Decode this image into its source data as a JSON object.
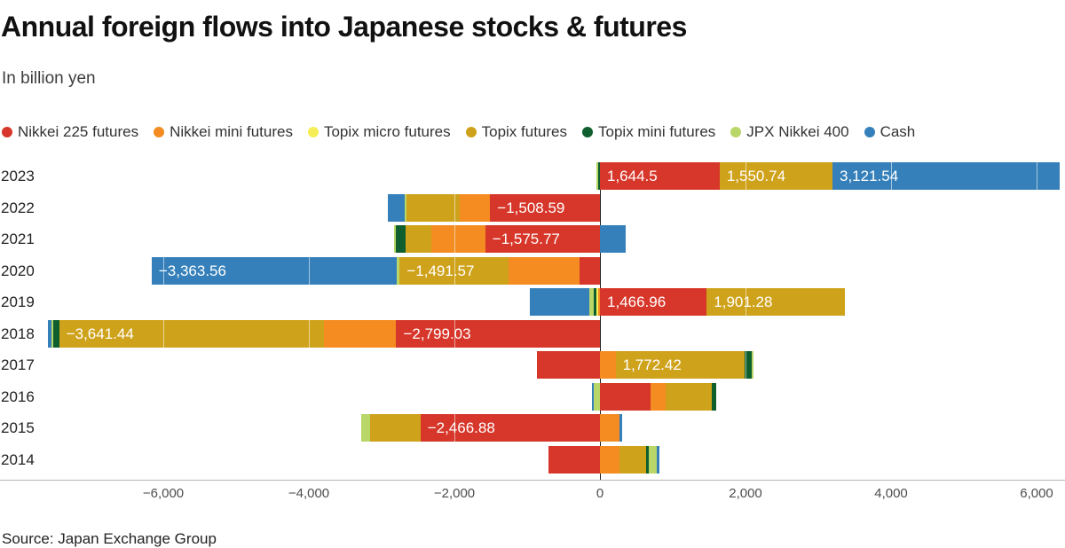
{
  "title": "Annual foreign flows into Japanese stocks & futures",
  "subtitle": "In billion yen",
  "source": "Source: Japan Exchange Group",
  "colors": {
    "nikkei225": "#d7372a",
    "mini": "#f48c21",
    "micro": "#f5ee57",
    "topix": "#cfa21b",
    "topix_mini": "#0e5f2d",
    "jpx": "#b9d668",
    "cash": "#3580ba"
  },
  "legend": [
    {
      "key": "nikkei225",
      "label": "Nikkei 225 futures"
    },
    {
      "key": "mini",
      "label": "Nikkei mini futures"
    },
    {
      "key": "micro",
      "label": "Topix micro futures"
    },
    {
      "key": "topix",
      "label": "Topix futures"
    },
    {
      "key": "topix_mini",
      "label": "Topix mini futures"
    },
    {
      "key": "jpx",
      "label": "JPX Nikkei 400"
    },
    {
      "key": "cash",
      "label": "Cash"
    }
  ],
  "chart_data": {
    "type": "bar",
    "orientation": "horizontal",
    "stacked": true,
    "unit": "billion yen",
    "xlim": [
      -7820,
      6390
    ],
    "x_ticks": [
      -6000,
      -4000,
      -2000,
      0,
      2000,
      4000,
      6000
    ],
    "x_tick_labels": [
      "−6,000",
      "−4,000",
      "−2,000",
      "0",
      "2,000",
      "4,000",
      "6,000"
    ],
    "series_names": {
      "nikkei225": "Nikkei 225 futures",
      "mini": "Nikkei mini futures",
      "micro": "Topix micro futures",
      "topix": "Topix futures",
      "topix_mini": "Topix mini futures",
      "jpx": "JPX Nikkei 400",
      "cash": "Cash"
    },
    "years": [
      {
        "label": "2023",
        "neg": [
          {
            "s": "topix_mini",
            "v": -25
          },
          {
            "s": "jpx",
            "v": -25
          }
        ],
        "pos": [
          {
            "s": "nikkei225",
            "v": 1644.5,
            "label": "1,644.5"
          },
          {
            "s": "topix",
            "v": 1550.74,
            "label": "1,550.74"
          },
          {
            "s": "cash",
            "v": 3121.54,
            "label": "3,121.54"
          }
        ]
      },
      {
        "label": "2022",
        "neg": [
          {
            "s": "nikkei225",
            "v": -1508.59,
            "label": "−1,508.59"
          },
          {
            "s": "mini",
            "v": -415
          },
          {
            "s": "topix",
            "v": -730
          },
          {
            "s": "jpx",
            "v": -25
          },
          {
            "s": "cash",
            "v": -235
          }
        ],
        "pos": []
      },
      {
        "label": "2021",
        "neg": [
          {
            "s": "nikkei225",
            "v": -1575.77,
            "label": "−1,575.77"
          },
          {
            "s": "mini",
            "v": -745
          },
          {
            "s": "topix",
            "v": -350
          },
          {
            "s": "topix_mini",
            "v": -135
          },
          {
            "s": "jpx",
            "v": -25
          }
        ],
        "pos": [
          {
            "s": "cash",
            "v": 350
          }
        ]
      },
      {
        "label": "2020",
        "neg": [
          {
            "s": "nikkei225",
            "v": -285
          },
          {
            "s": "mini",
            "v": -975
          },
          {
            "s": "topix",
            "v": -1491.57,
            "label": "−1,491.57"
          },
          {
            "s": "jpx",
            "v": -45
          },
          {
            "s": "cash",
            "v": -3363.56,
            "label": "−3,363.56"
          }
        ],
        "pos": []
      },
      {
        "label": "2019",
        "neg": [
          {
            "s": "mini",
            "v": -30
          },
          {
            "s": "micro",
            "v": -20
          },
          {
            "s": "topix_mini",
            "v": -35
          },
          {
            "s": "jpx",
            "v": -55
          },
          {
            "s": "cash",
            "v": -825
          }
        ],
        "pos": [
          {
            "s": "nikkei225",
            "v": 1466.96,
            "label": "1,466.96"
          },
          {
            "s": "topix",
            "v": 1901.28,
            "label": "1,901.28"
          }
        ]
      },
      {
        "label": "2018",
        "neg": [
          {
            "s": "nikkei225",
            "v": -2799.03,
            "label": "−2,799.03"
          },
          {
            "s": "mini",
            "v": -990
          },
          {
            "s": "topix",
            "v": -3641.44,
            "label": "−3,641.44"
          },
          {
            "s": "topix_mini",
            "v": -85
          },
          {
            "s": "jpx",
            "v": -25
          },
          {
            "s": "cash",
            "v": -40
          }
        ],
        "pos": []
      },
      {
        "label": "2017",
        "neg": [
          {
            "s": "nikkei225",
            "v": -870
          }
        ],
        "pos": [
          {
            "s": "mini",
            "v": 215
          },
          {
            "s": "topix",
            "v": 1772.42,
            "label": "1,772.42"
          },
          {
            "s": "topix_mini",
            "v": 95
          },
          {
            "s": "jpx",
            "v": 25
          }
        ]
      },
      {
        "label": "2016",
        "neg": [
          {
            "s": "jpx",
            "v": -85
          },
          {
            "s": "cash",
            "v": -25
          }
        ],
        "pos": [
          {
            "s": "nikkei225",
            "v": 700
          },
          {
            "s": "mini",
            "v": 205
          },
          {
            "s": "topix",
            "v": 630
          },
          {
            "s": "topix_mini",
            "v": 60
          }
        ]
      },
      {
        "label": "2015",
        "neg": [
          {
            "s": "nikkei225",
            "v": -2466.88,
            "label": "−2,466.88"
          },
          {
            "s": "topix",
            "v": -690
          },
          {
            "s": "jpx",
            "v": -120
          }
        ],
        "pos": [
          {
            "s": "mini",
            "v": 270
          },
          {
            "s": "cash",
            "v": 40
          }
        ]
      },
      {
        "label": "2014",
        "neg": [
          {
            "s": "nikkei225",
            "v": -710
          }
        ],
        "pos": [
          {
            "s": "mini",
            "v": 265
          },
          {
            "s": "topix",
            "v": 365
          },
          {
            "s": "topix_mini",
            "v": 45
          },
          {
            "s": "jpx",
            "v": 105
          },
          {
            "s": "cash",
            "v": 35
          }
        ]
      }
    ]
  }
}
